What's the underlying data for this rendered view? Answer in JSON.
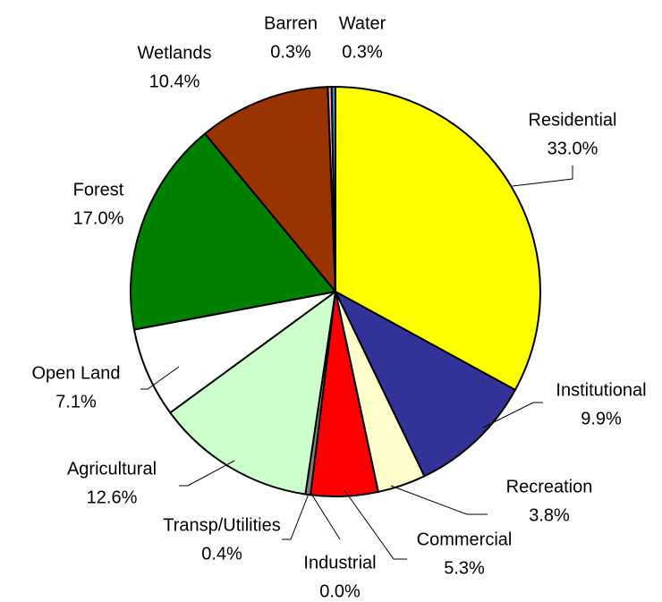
{
  "chart_data": {
    "type": "pie",
    "categories": [
      "Residential",
      "Institutional",
      "Recreation",
      "Commercial",
      "Industrial",
      "Transp/Utilities",
      "Agricultural",
      "Open Land",
      "Forest",
      "Wetlands",
      "Barren",
      "Water"
    ],
    "values": [
      33.0,
      9.9,
      3.8,
      5.3,
      0.0,
      0.4,
      12.6,
      7.1,
      17.0,
      10.4,
      0.3,
      0.3
    ],
    "value_labels": [
      "33.0%",
      "9.9%",
      "3.8%",
      "5.3%",
      "0.0%",
      "0.4%",
      "12.6%",
      "7.1%",
      "17.0%",
      "10.4%",
      "0.3%",
      "0.3%"
    ],
    "colors": [
      "#ffff00",
      "#333399",
      "#ffffcc",
      "#ff0000",
      "#800080",
      "#808080",
      "#ccffcc",
      "#ffffff",
      "#008000",
      "#993300",
      "#ff99cc",
      "#3399cc"
    ]
  }
}
